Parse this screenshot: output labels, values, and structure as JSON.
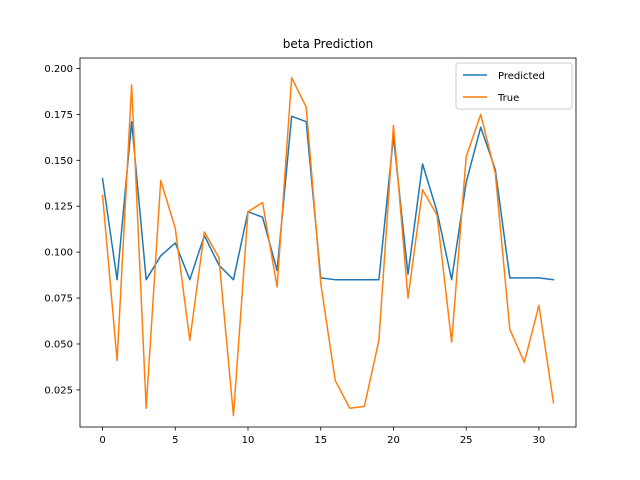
{
  "chart_data": {
    "type": "line",
    "title": "beta Prediction",
    "xlabel": "",
    "ylabel": "",
    "xlim": [
      -1.55,
      32.55
    ],
    "ylim": [
      0.0048,
      0.2057
    ],
    "x_ticks": [
      0,
      5,
      10,
      15,
      20,
      25,
      30
    ],
    "x_tick_labels": [
      "0",
      "5",
      "10",
      "15",
      "20",
      "25",
      "30"
    ],
    "y_ticks": [
      0.025,
      0.05,
      0.075,
      0.1,
      0.125,
      0.15,
      0.175,
      0.2
    ],
    "y_tick_labels": [
      "0.025",
      "0.050",
      "0.075",
      "0.100",
      "0.125",
      "0.150",
      "0.175",
      "0.200"
    ],
    "grid": false,
    "legend_position": "top-right",
    "x": [
      0,
      1,
      2,
      3,
      4,
      5,
      6,
      7,
      8,
      9,
      10,
      11,
      12,
      13,
      14,
      15,
      16,
      17,
      18,
      19,
      20,
      21,
      22,
      23,
      24,
      25,
      26,
      27,
      28,
      29,
      30,
      31
    ],
    "series": [
      {
        "name": "Predicted",
        "color": "#1f77b4",
        "values": [
          0.14,
          0.085,
          0.171,
          0.085,
          0.098,
          0.105,
          0.085,
          0.109,
          0.093,
          0.085,
          0.122,
          0.119,
          0.09,
          0.174,
          0.171,
          0.086,
          0.085,
          0.085,
          0.085,
          0.085,
          0.163,
          0.088,
          0.148,
          0.122,
          0.085,
          0.138,
          0.168,
          0.145,
          0.086,
          0.086,
          0.086,
          0.085
        ]
      },
      {
        "name": "True",
        "color": "#ff7f0e",
        "values": [
          0.131,
          0.041,
          0.191,
          0.015,
          0.139,
          0.113,
          0.052,
          0.111,
          0.097,
          0.011,
          0.122,
          0.127,
          0.081,
          0.195,
          0.179,
          0.083,
          0.03,
          0.015,
          0.016,
          0.052,
          0.169,
          0.075,
          0.134,
          0.12,
          0.051,
          0.152,
          0.175,
          0.143,
          0.058,
          0.04,
          0.071,
          0.018
        ]
      }
    ]
  }
}
